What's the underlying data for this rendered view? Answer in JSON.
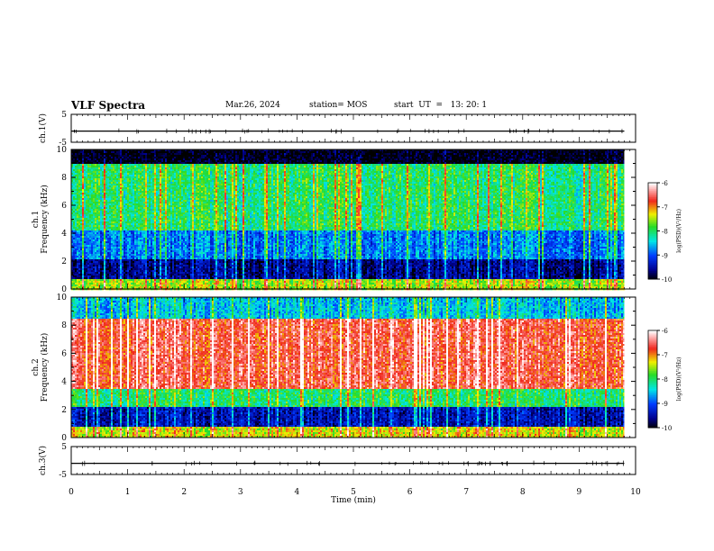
{
  "header": {
    "title": "VLF Spectra",
    "date": "Mar.26, 2024",
    "station": "station= MOS",
    "start_ut": "start  UT  =   13: 20: 1"
  },
  "chart_data": [
    {
      "type": "line",
      "panel": "ch1-waveform",
      "ylabel": "ch.1(V)",
      "ylim": [
        -5,
        5
      ],
      "yticks": [
        "5",
        "-5"
      ],
      "xlim": [
        0,
        10
      ],
      "series": [
        {
          "values_note": "",
          "baseline": -1
        }
      ]
    },
    {
      "type": "heatmap",
      "panel": "ch1-spectrogram",
      "ylabel": "ch.1\nFrequency (kHz)",
      "ylim": [
        0,
        10
      ],
      "yticks": [
        "0",
        "2",
        "4",
        "6",
        "8",
        "10"
      ],
      "xlim": [
        0,
        9.8
      ],
      "colorbar": {
        "label": "log(PSD)(V²/Hz)",
        "range": [
          -10,
          -6
        ],
        "ticks": [
          "-6",
          "-7",
          "-8",
          "-9",
          "-10"
        ]
      },
      "bands": [
        {
          "f_lo": 0,
          "f_hi": 0.8,
          "level": -7.5
        },
        {
          "f_lo": 0.8,
          "f_hi": 2.2,
          "level": -9.6
        },
        {
          "f_lo": 2.2,
          "f_hi": 4.2,
          "level": -8.8
        },
        {
          "f_lo": 4.2,
          "f_hi": 9.0,
          "level": -8.0
        },
        {
          "f_lo": 9.0,
          "f_hi": 10,
          "level": -10
        }
      ]
    },
    {
      "type": "heatmap",
      "panel": "ch2-spectrogram",
      "ylabel": "ch.2\nFrequency (kHz)",
      "ylim": [
        0,
        10
      ],
      "yticks": [
        "0",
        "2",
        "4",
        "6",
        "8",
        "10"
      ],
      "xlim": [
        0,
        9.8
      ],
      "colorbar": {
        "label": "log(PSD)(V²/Hz)",
        "range": [
          -10,
          -6
        ],
        "ticks": [
          "-6",
          "-7",
          "-8",
          "-9",
          "-10"
        ]
      },
      "bands": [
        {
          "f_lo": 0,
          "f_hi": 0.8,
          "level": -7.3
        },
        {
          "f_lo": 0.8,
          "f_hi": 2.2,
          "level": -9.4
        },
        {
          "f_lo": 2.2,
          "f_hi": 3.5,
          "level": -8.0
        },
        {
          "f_lo": 3.5,
          "f_hi": 8.5,
          "level": -6.6
        },
        {
          "f_lo": 8.5,
          "f_hi": 10,
          "level": -8.5
        }
      ]
    },
    {
      "type": "line",
      "panel": "ch3-waveform",
      "ylabel": "ch.3(V)",
      "ylim": [
        -5,
        5
      ],
      "yticks": [
        "5",
        "-5"
      ],
      "xlim": [
        0,
        10
      ],
      "series": [
        {
          "values_note": "",
          "baseline": -1
        }
      ]
    }
  ],
  "xaxis": {
    "label": "Time (min)",
    "ticks": [
      "0",
      "1",
      "2",
      "3",
      "4",
      "5",
      "6",
      "7",
      "8",
      "9",
      "10"
    ]
  }
}
